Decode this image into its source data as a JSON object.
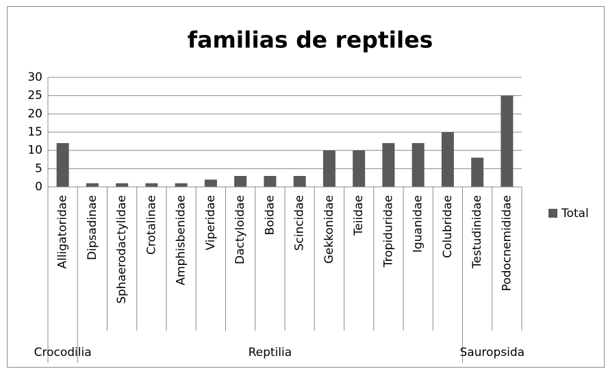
{
  "chart_data": {
    "type": "bar",
    "title": "familias de reptiles",
    "groups": [
      {
        "name": "Crocodilia",
        "categories": [
          "Alligatoridae"
        ],
        "values": [
          12
        ]
      },
      {
        "name": "Reptilia",
        "categories": [
          "Dipsadinae",
          "Sphaerodactylidae",
          "Crotalinae",
          "Amphisbenidae",
          "Viperidae",
          "Dactyloidae",
          "Boidae",
          "Scincidae",
          "Gekkonidae",
          "Teiidae",
          "Tropiduridae",
          "Iguanidae",
          "Colubridae"
        ],
        "values": [
          1,
          1,
          1,
          1,
          2,
          3,
          3,
          3,
          10,
          10,
          12,
          12,
          15
        ]
      },
      {
        "name": "Sauropsida",
        "categories": [
          "Testudinidae",
          "Podocnemididae"
        ],
        "values": [
          8,
          25
        ]
      }
    ],
    "series_name": "Total",
    "color": "#595959",
    "legend": "right",
    "ylim": [
      0,
      30
    ],
    "yticks": [
      0,
      5,
      10,
      15,
      20,
      25,
      30
    ],
    "grid": true
  }
}
